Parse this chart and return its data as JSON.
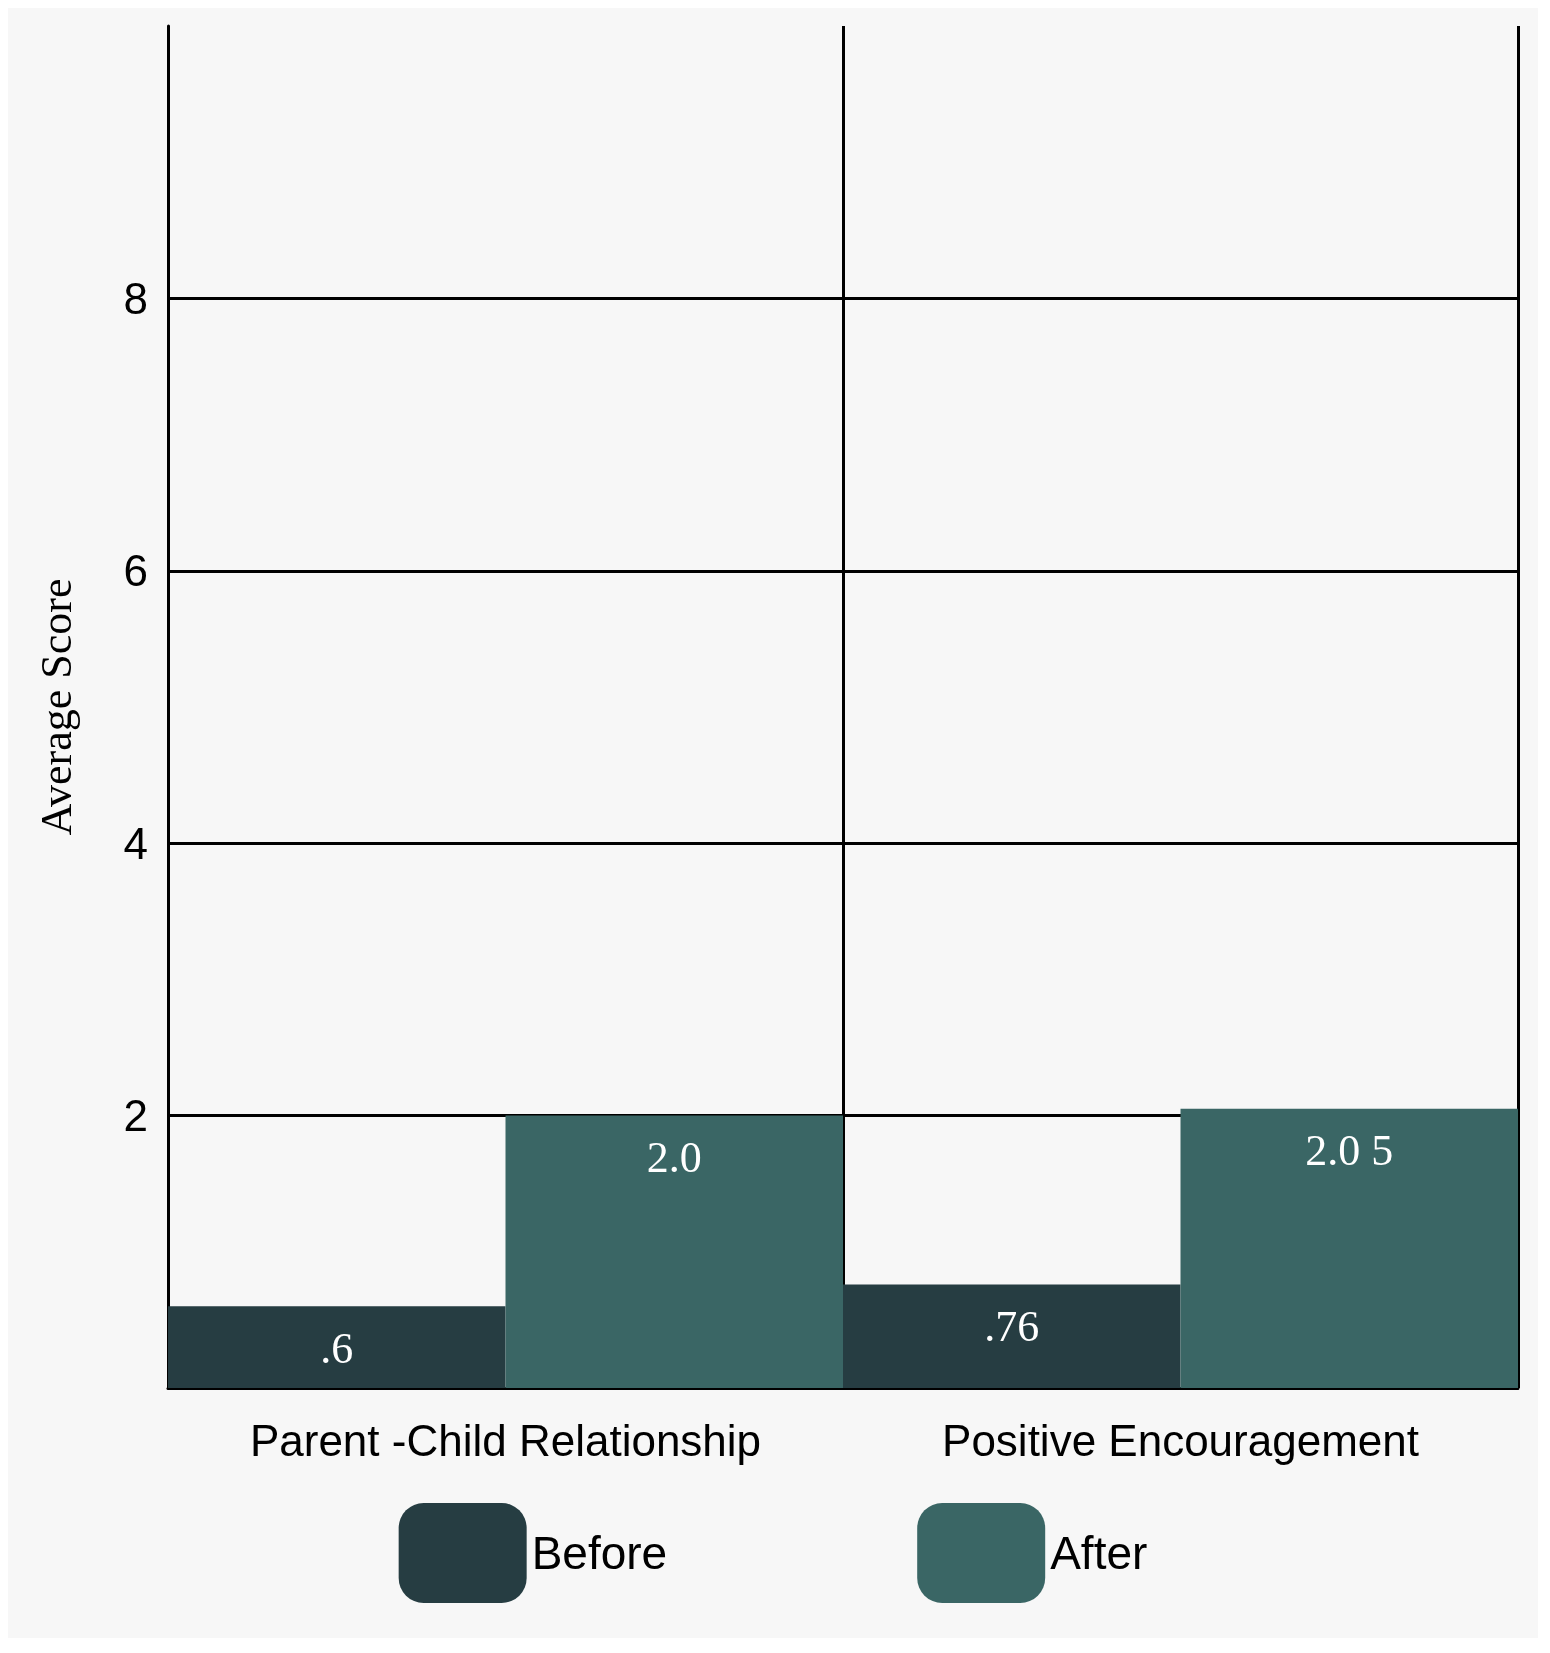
{
  "chart_data": {
    "type": "bar",
    "ylabel": "Average Score",
    "categories": [
      "Parent -Child Relationship",
      "Positive Encouragement"
    ],
    "series": [
      {
        "name": "Before",
        "color": "#263d42",
        "values": [
          0.6,
          0.76
        ],
        "value_labels": [
          ".6",
          ".76"
        ]
      },
      {
        "name": "After",
        "color": "#3a6665",
        "values": [
          2.0,
          2.05
        ],
        "value_labels": [
          "2.0",
          "2.0 5"
        ]
      }
    ],
    "ylim": [
      0,
      10
    ],
    "yticks": [
      2,
      4,
      6,
      8
    ],
    "grid": true,
    "legend": "bottom"
  }
}
